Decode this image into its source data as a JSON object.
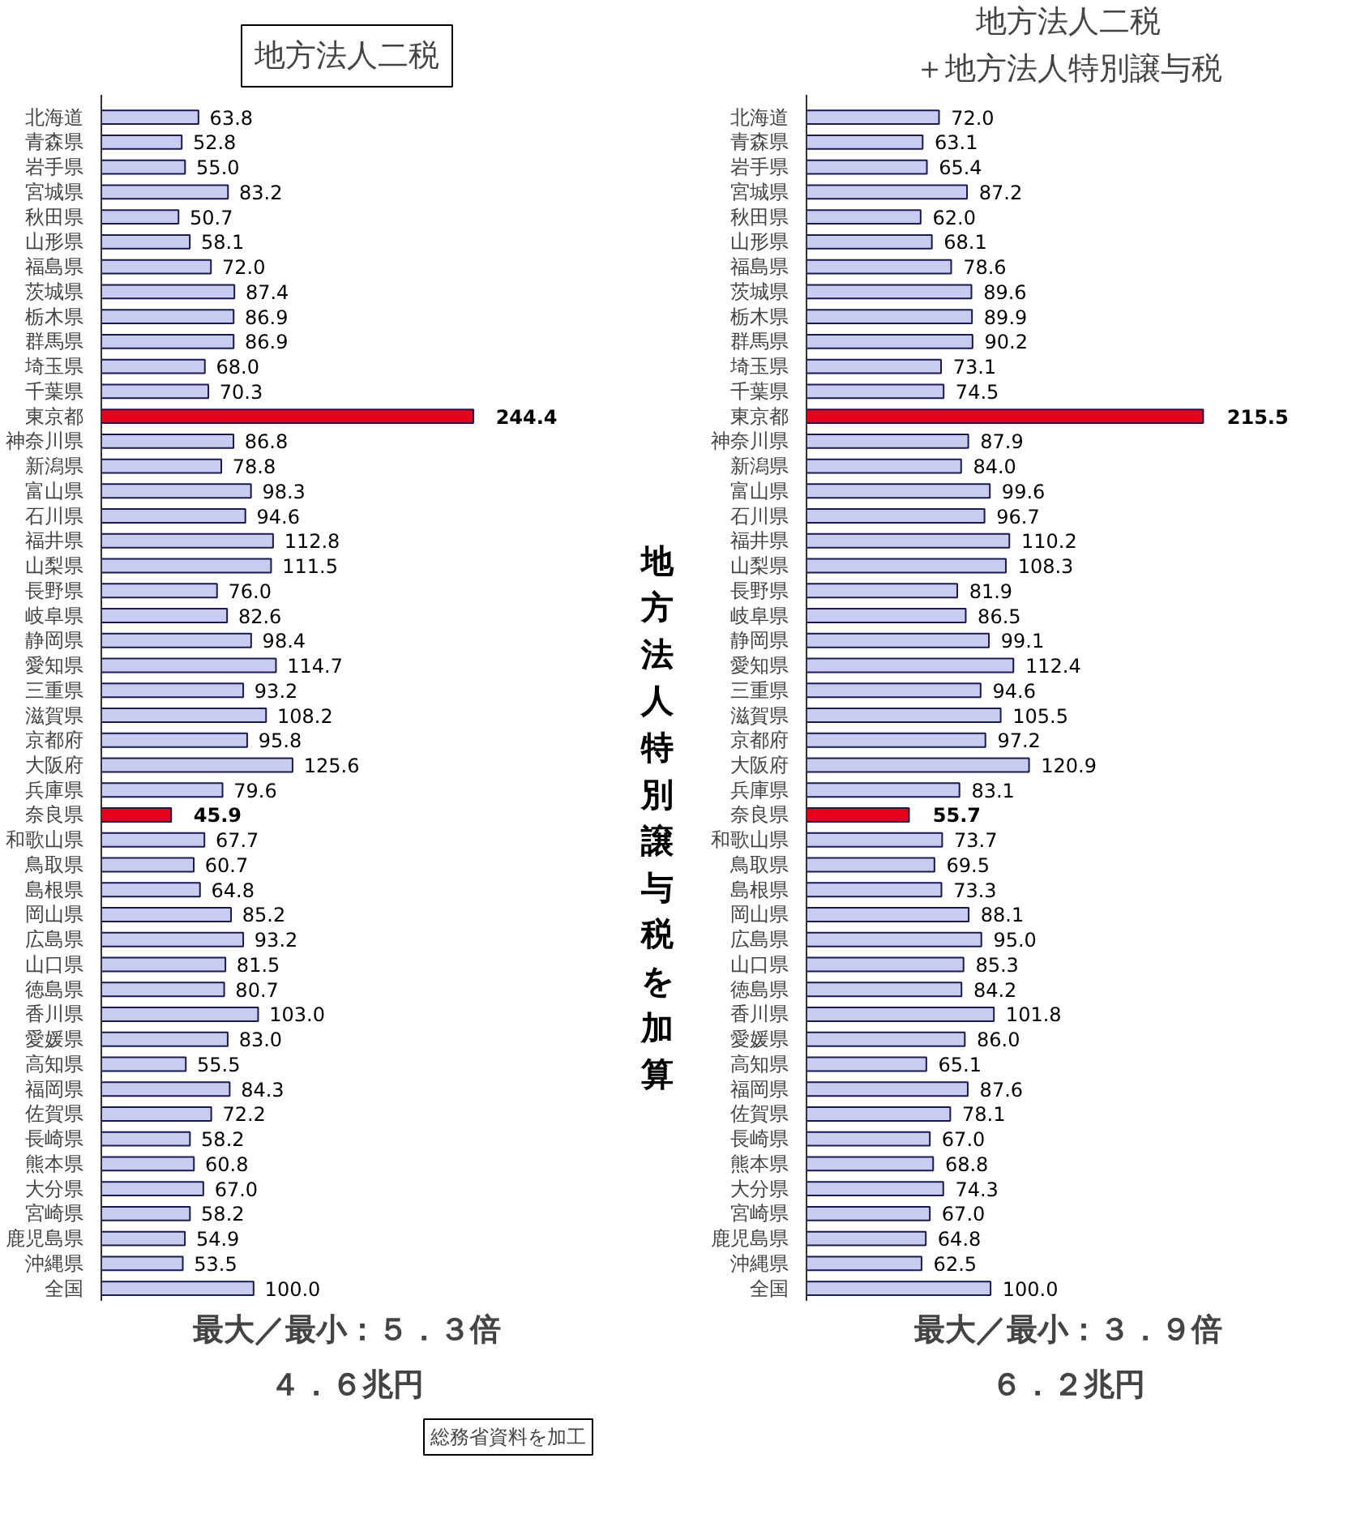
{
  "chart_data": [
    {
      "type": "bar",
      "orientation": "horizontal",
      "title": "地方法人二税",
      "value_labels": [
        "63.8",
        "52.8",
        "55.0",
        "83.2",
        "50.7",
        "58.1",
        "72.0",
        "87.4",
        "86.9",
        "86.9",
        "68.0",
        "70.3",
        "244.4",
        "86.8",
        "78.8",
        "98.3",
        "94.6",
        "112.8",
        "111.5",
        "76.0",
        "82.6",
        "98.4",
        "114.7",
        "93.2",
        "108.2",
        "95.8",
        "125.6",
        "79.6",
        "45.9",
        "67.7",
        "60.7",
        "64.8",
        "85.2",
        "93.2",
        "81.5",
        "80.7",
        "103.0",
        "83.0",
        "55.5",
        "84.3",
        "72.2",
        "58.2",
        "60.8",
        "67.0",
        "58.2",
        "54.9",
        "53.5",
        "100.0"
      ],
      "categories": [
        "北海道",
        "青森県",
        "岩手県",
        "宮城県",
        "秋田県",
        "山形県",
        "福島県",
        "茨城県",
        "栃木県",
        "群馬県",
        "埼玉県",
        "千葉県",
        "東京都",
        "神奈川県",
        "新潟県",
        "富山県",
        "石川県",
        "福井県",
        "山梨県",
        "長野県",
        "岐阜県",
        "静岡県",
        "愛知県",
        "三重県",
        "滋賀県",
        "京都府",
        "大阪府",
        "兵庫県",
        "奈良県",
        "和歌山県",
        "鳥取県",
        "島根県",
        "岡山県",
        "広島県",
        "山口県",
        "徳島県",
        "香川県",
        "愛媛県",
        "高知県",
        "福岡県",
        "佐賀県",
        "長崎県",
        "熊本県",
        "大分県",
        "宮崎県",
        "鹿児島県",
        "沖縄県",
        "全国"
      ],
      "values": [
        63.8,
        52.8,
        55.0,
        83.2,
        50.7,
        58.1,
        72.0,
        87.4,
        86.9,
        86.9,
        68.0,
        70.3,
        244.4,
        86.8,
        78.8,
        98.3,
        94.6,
        112.8,
        111.5,
        76.0,
        82.6,
        98.4,
        114.7,
        93.2,
        108.2,
        95.8,
        125.6,
        79.6,
        45.9,
        67.7,
        60.7,
        64.8,
        85.2,
        93.2,
        81.5,
        80.7,
        103.0,
        83.0,
        55.5,
        84.3,
        72.2,
        58.2,
        60.8,
        67.0,
        58.2,
        54.9,
        53.5,
        100.0
      ],
      "colors": [
        "#c8ccf0",
        "#c8ccf0",
        "#c8ccf0",
        "#c8ccf0",
        "#c8ccf0",
        "#c8ccf0",
        "#c8ccf0",
        "#c8ccf0",
        "#c8ccf0",
        "#c8ccf0",
        "#c8ccf0",
        "#c8ccf0",
        "#e8001c",
        "#c8ccf0",
        "#c8ccf0",
        "#c8ccf0",
        "#c8ccf0",
        "#c8ccf0",
        "#c8ccf0",
        "#c8ccf0",
        "#c8ccf0",
        "#c8ccf0",
        "#c8ccf0",
        "#c8ccf0",
        "#c8ccf0",
        "#c8ccf0",
        "#c8ccf0",
        "#c8ccf0",
        "#e8001c",
        "#c8ccf0",
        "#c8ccf0",
        "#c8ccf0",
        "#c8ccf0",
        "#c8ccf0",
        "#c8ccf0",
        "#c8ccf0",
        "#c8ccf0",
        "#c8ccf0",
        "#c8ccf0",
        "#c8ccf0",
        "#c8ccf0",
        "#c8ccf0",
        "#c8ccf0",
        "#c8ccf0",
        "#c8ccf0",
        "#c8ccf0",
        "#c8ccf0",
        "#c8ccf0"
      ],
      "annotations": [
        "最大／最小：５．３倍",
        "４．６兆円",
        "総務省資料を加工"
      ]
    },
    {
      "type": "other",
      "annotations": [
        "地方法人特別譲与税を加算"
      ]
    },
    {
      "type": "bar",
      "orientation": "horizontal",
      "title": "地方法人二税",
      "subtitle": "＋地方法人特別譲与税",
      "value_labels": [
        "72.0",
        "63.1",
        "65.4",
        "87.2",
        "62.0",
        "68.1",
        "78.6",
        "89.6",
        "89.9",
        "90.2",
        "73.1",
        "74.5",
        "215.5",
        "87.9",
        "84.0",
        "99.6",
        "96.7",
        "110.2",
        "108.3",
        "81.9",
        "86.5",
        "99.1",
        "112.4",
        "94.6",
        "105.5",
        "97.2",
        "120.9",
        "83.1",
        "55.7",
        "73.7",
        "69.5",
        "73.3",
        "88.1",
        "95.0",
        "85.3",
        "84.2",
        "101.8",
        "86.0",
        "65.1",
        "87.6",
        "78.1",
        "67.0",
        "68.8",
        "74.3",
        "67.0",
        "64.8",
        "62.5",
        "100.0"
      ],
      "categories": [
        "北海道",
        "青森県",
        "岩手県",
        "宮城県",
        "秋田県",
        "山形県",
        "福島県",
        "茨城県",
        "栃木県",
        "群馬県",
        "埼玉県",
        "千葉県",
        "東京都",
        "神奈川県",
        "新潟県",
        "富山県",
        "石川県",
        "福井県",
        "山梨県",
        "長野県",
        "岐阜県",
        "静岡県",
        "愛知県",
        "三重県",
        "滋賀県",
        "京都府",
        "大阪府",
        "兵庫県",
        "奈良県",
        "和歌山県",
        "鳥取県",
        "島根県",
        "岡山県",
        "広島県",
        "山口県",
        "徳島県",
        "香川県",
        "愛媛県",
        "高知県",
        "福岡県",
        "佐賀県",
        "長崎県",
        "熊本県",
        "大分県",
        "宮崎県",
        "鹿児島県",
        "沖縄県",
        "全国"
      ],
      "values": [
        72.0,
        63.1,
        65.4,
        87.2,
        62.0,
        68.1,
        78.6,
        89.6,
        89.9,
        90.2,
        73.1,
        74.5,
        215.5,
        87.9,
        84.0,
        99.6,
        96.7,
        110.2,
        108.3,
        81.9,
        86.5,
        99.1,
        112.4,
        94.6,
        105.5,
        97.2,
        120.9,
        83.1,
        55.7,
        73.7,
        69.5,
        73.3,
        88.1,
        95.0,
        85.3,
        84.2,
        101.8,
        86.0,
        65.1,
        87.6,
        78.1,
        67.0,
        68.8,
        74.3,
        67.0,
        64.8,
        62.5,
        100.0
      ],
      "colors": [
        "#c8ccf0",
        "#c8ccf0",
        "#c8ccf0",
        "#c8ccf0",
        "#c8ccf0",
        "#c8ccf0",
        "#c8ccf0",
        "#c8ccf0",
        "#c8ccf0",
        "#c8ccf0",
        "#c8ccf0",
        "#c8ccf0",
        "#e8001c",
        "#c8ccf0",
        "#c8ccf0",
        "#c8ccf0",
        "#c8ccf0",
        "#c8ccf0",
        "#c8ccf0",
        "#c8ccf0",
        "#c8ccf0",
        "#c8ccf0",
        "#c8ccf0",
        "#c8ccf0",
        "#c8ccf0",
        "#c8ccf0",
        "#c8ccf0",
        "#c8ccf0",
        "#e8001c",
        "#c8ccf0",
        "#c8ccf0",
        "#c8ccf0",
        "#c8ccf0",
        "#c8ccf0",
        "#c8ccf0",
        "#c8ccf0",
        "#c8ccf0",
        "#c8ccf0",
        "#c8ccf0",
        "#c8ccf0",
        "#c8ccf0",
        "#c8ccf0",
        "#c8ccf0",
        "#c8ccf0",
        "#c8ccf0",
        "#c8ccf0",
        "#c8ccf0",
        "#c8ccf0"
      ],
      "annotations": [
        "最大／最小：３．９倍",
        "６．２兆円"
      ]
    }
  ]
}
